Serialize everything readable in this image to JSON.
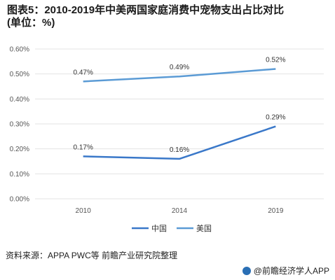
{
  "title": {
    "line1": "图表5：2010-2019年中美两国家庭消费中宠物支出占比对比",
    "line2": "(单位：%)"
  },
  "source": "资料来源：APPA PWC等 前瞻产业研究院整理",
  "brand": "@前瞻经济学人APP",
  "colors": {
    "china": "#3a78c9",
    "usa": "#5b9bd5",
    "grid": "#e3e3e3"
  },
  "chart_data": {
    "type": "line",
    "categories": [
      "2010",
      "2014",
      "2019"
    ],
    "series": [
      {
        "name": "中国",
        "values": [
          0.17,
          0.16,
          0.29
        ],
        "labels": [
          "0.17%",
          "0.16%",
          "0.29%"
        ]
      },
      {
        "name": "美国",
        "values": [
          0.47,
          0.49,
          0.52
        ],
        "labels": [
          "0.47%",
          "0.49%",
          "0.52%"
        ]
      }
    ],
    "ylim": [
      0,
      0.6
    ],
    "yticks": [
      "0.00%",
      "0.10%",
      "0.20%",
      "0.30%",
      "0.40%",
      "0.50%",
      "0.60%"
    ],
    "grid": true,
    "legend": "bottom-center"
  }
}
